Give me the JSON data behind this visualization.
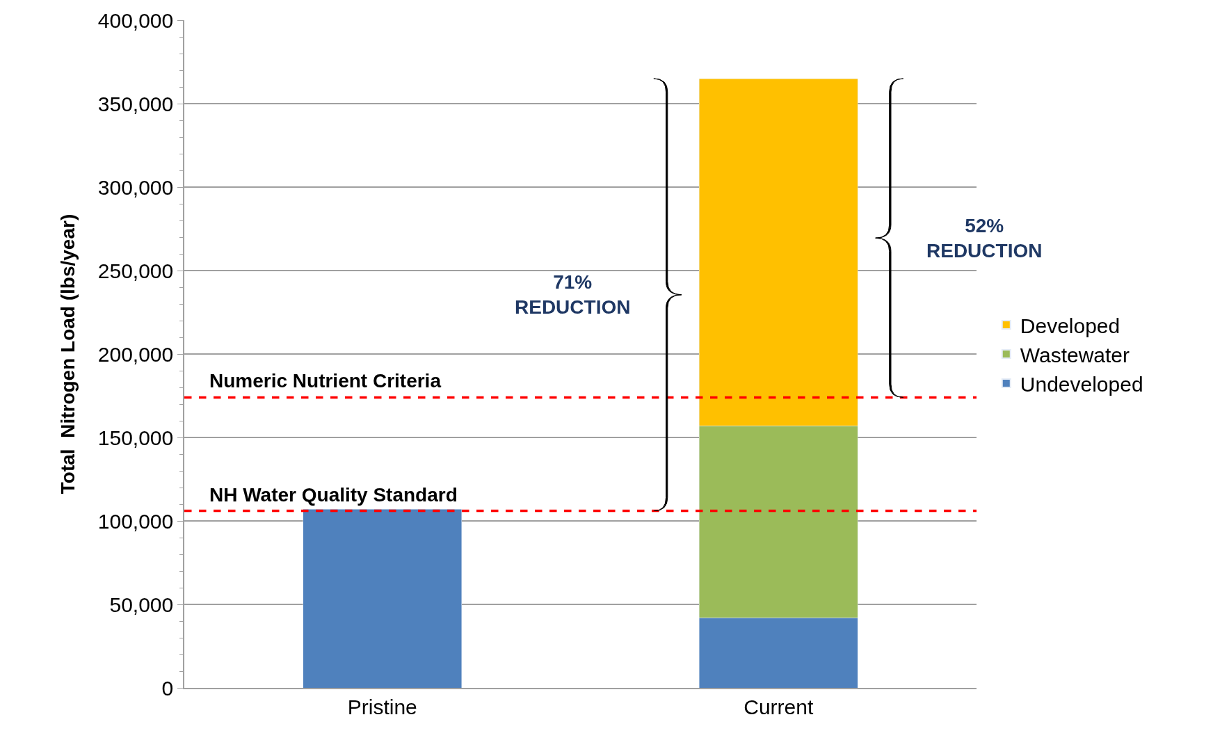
{
  "chart_data": {
    "type": "bar",
    "stacked": true,
    "ylabel": "Total  Nitrogen Load (lbs/year)",
    "categories": [
      "Pristine",
      "Current"
    ],
    "series": [
      {
        "name": "Undeveloped",
        "color": "#4f81bd",
        "values": [
          107000,
          42000
        ]
      },
      {
        "name": "Wastewater",
        "color": "#9bbb59",
        "values": [
          null,
          115000
        ]
      },
      {
        "name": "Developed",
        "color": "#ffc000",
        "values": [
          null,
          208000
        ]
      }
    ],
    "ylim": [
      0,
      400000
    ],
    "yticks": [
      {
        "value": 0,
        "label": "0"
      },
      {
        "value": 50000,
        "label": "50,000"
      },
      {
        "value": 100000,
        "label": "100,000"
      },
      {
        "value": 150000,
        "label": "150,000"
      },
      {
        "value": 200000,
        "label": "200,000"
      },
      {
        "value": 250000,
        "label": "250,000"
      },
      {
        "value": 300000,
        "label": "300,000"
      },
      {
        "value": 350000,
        "label": "350,000"
      },
      {
        "value": 400000,
        "label": "400,000"
      }
    ],
    "grid": "y",
    "legend": "right",
    "ref_lines": [
      {
        "axis": "y",
        "value": 174000,
        "label": "Numeric Nutrient Criteria",
        "color": "#ff0000",
        "line_style": "dashed"
      },
      {
        "axis": "y",
        "value": 106000,
        "label": "NH Water Quality Standard",
        "color": "#ff0000",
        "line_style": "dashed"
      }
    ],
    "annotations": [
      "71%\nREDUCTION",
      "52%\nREDUCTION"
    ]
  }
}
